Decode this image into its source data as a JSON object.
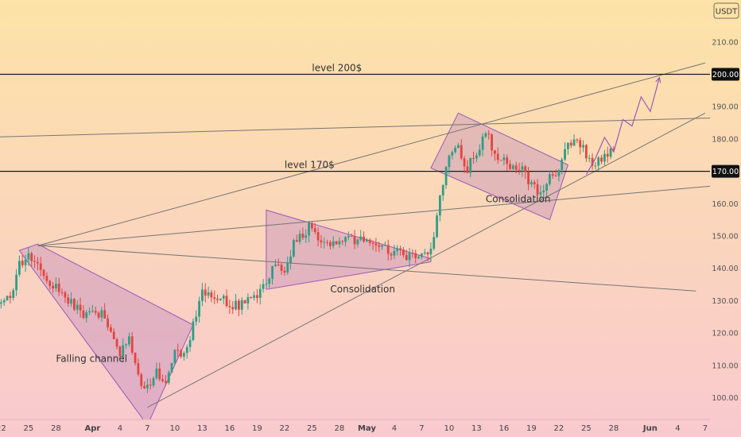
{
  "chart_data": {
    "type": "candlestick",
    "currency_label": "USDT",
    "y_axis": {
      "ylim": [
        90,
        218
      ],
      "ticks": [
        100,
        110,
        120,
        130,
        140,
        150,
        160,
        170,
        180,
        190,
        200,
        210
      ],
      "tick_labels": [
        "100.00",
        "110.00",
        "120.00",
        "130.00",
        "140.00",
        "150.00",
        "160.00",
        "170.00",
        "180.00",
        "190.00",
        "200.00",
        "210.00"
      ],
      "highlighted": [
        {
          "value": 200,
          "label": "200.00"
        },
        {
          "value": 170,
          "label": "170.00"
        }
      ]
    },
    "x_axis": {
      "start_date": "2024-03-21",
      "end_date": "2024-06-08",
      "tick_labels": [
        {
          "date": "2024-03-22",
          "label": "22",
          "bold": false
        },
        {
          "date": "2024-03-25",
          "label": "25",
          "bold": false
        },
        {
          "date": "2024-03-28",
          "label": "28",
          "bold": false
        },
        {
          "date": "2024-04-01",
          "label": "Apr",
          "bold": true
        },
        {
          "date": "2024-04-04",
          "label": "4",
          "bold": false
        },
        {
          "date": "2024-04-07",
          "label": "7",
          "bold": false
        },
        {
          "date": "2024-04-10",
          "label": "10",
          "bold": false
        },
        {
          "date": "2024-04-13",
          "label": "13",
          "bold": false
        },
        {
          "date": "2024-04-16",
          "label": "16",
          "bold": false
        },
        {
          "date": "2024-04-19",
          "label": "19",
          "bold": false
        },
        {
          "date": "2024-04-22",
          "label": "22",
          "bold": false
        },
        {
          "date": "2024-04-25",
          "label": "25",
          "bold": false
        },
        {
          "date": "2024-04-28",
          "label": "28",
          "bold": false
        },
        {
          "date": "2024-05-01",
          "label": "May",
          "bold": true
        },
        {
          "date": "2024-05-04",
          "label": "4",
          "bold": false
        },
        {
          "date": "2024-05-07",
          "label": "7",
          "bold": false
        },
        {
          "date": "2024-05-10",
          "label": "10",
          "bold": false
        },
        {
          "date": "2024-05-13",
          "label": "13",
          "bold": false
        },
        {
          "date": "2024-05-16",
          "label": "16",
          "bold": false
        },
        {
          "date": "2024-05-19",
          "label": "19",
          "bold": false
        },
        {
          "date": "2024-05-22",
          "label": "22",
          "bold": false
        },
        {
          "date": "2024-05-25",
          "label": "25",
          "bold": false
        },
        {
          "date": "2024-05-28",
          "label": "28",
          "bold": false
        },
        {
          "date": "2024-06-01",
          "label": "Jun",
          "bold": true
        },
        {
          "date": "2024-06-04",
          "label": "4",
          "bold": false
        },
        {
          "date": "2024-06-07",
          "label": "7",
          "bold": false
        }
      ]
    },
    "colors": {
      "bg_top": "#fde3a7",
      "bg_bottom": "#f9c9cf",
      "up": "#2e9e85",
      "down": "#e2453f",
      "pattern_stroke": "#9b59b6",
      "pattern_fill": "rgba(170,110,190,0.30)",
      "trend_line": "#757575",
      "level_line": "#1c1c1c"
    },
    "price_path": [
      [
        "2024-03-21",
        128.5
      ],
      [
        "2024-03-23",
        131
      ],
      [
        "2024-03-24",
        141
      ],
      [
        "2024-03-25",
        144
      ],
      [
        "2024-03-26",
        141
      ],
      [
        "2024-03-27",
        137
      ],
      [
        "2024-03-29",
        131
      ],
      [
        "2024-03-31",
        126
      ],
      [
        "2024-04-02",
        126
      ],
      [
        "2024-04-03",
        119
      ],
      [
        "2024-04-04",
        113
      ],
      [
        "2024-04-05",
        119
      ],
      [
        "2024-04-06",
        106
      ],
      [
        "2024-04-07",
        103
      ],
      [
        "2024-04-08",
        109
      ],
      [
        "2024-04-09",
        103
      ],
      [
        "2024-04-10",
        116
      ],
      [
        "2024-04-11",
        113
      ],
      [
        "2024-04-12",
        122
      ],
      [
        "2024-04-13",
        133
      ],
      [
        "2024-04-15",
        131
      ],
      [
        "2024-04-17",
        128
      ],
      [
        "2024-04-19",
        131
      ],
      [
        "2024-04-20",
        135
      ],
      [
        "2024-04-21",
        141
      ],
      [
        "2024-04-22",
        139
      ],
      [
        "2024-04-23",
        148
      ],
      [
        "2024-04-24",
        151
      ],
      [
        "2024-04-25",
        153
      ],
      [
        "2024-04-26",
        149
      ],
      [
        "2024-04-28",
        148
      ],
      [
        "2024-04-30",
        149
      ],
      [
        "2024-05-02",
        148
      ],
      [
        "2024-05-04",
        145
      ],
      [
        "2024-05-06",
        143
      ],
      [
        "2024-05-07",
        144
      ],
      [
        "2024-05-08",
        146
      ],
      [
        "2024-05-09",
        162
      ],
      [
        "2024-05-10",
        175
      ],
      [
        "2024-05-11",
        177
      ],
      [
        "2024-05-12",
        171
      ],
      [
        "2024-05-13",
        176
      ],
      [
        "2024-05-14",
        182
      ],
      [
        "2024-05-15",
        176
      ],
      [
        "2024-05-16",
        173
      ],
      [
        "2024-05-18",
        170
      ],
      [
        "2024-05-20",
        163
      ],
      [
        "2024-05-21",
        168
      ],
      [
        "2024-05-22",
        170
      ],
      [
        "2024-05-23",
        178
      ],
      [
        "2024-05-24",
        181
      ],
      [
        "2024-05-25",
        175
      ],
      [
        "2024-05-26",
        172
      ],
      [
        "2024-05-27",
        174
      ],
      [
        "2024-05-28",
        177
      ]
    ],
    "levels": [
      {
        "name": "level-200",
        "price": 200,
        "label": "level 200$",
        "label_date": "2024-04-25"
      },
      {
        "name": "level-170",
        "price": 170,
        "label": "level 170$",
        "label_date": "2024-04-22"
      }
    ],
    "trend_lines": [
      {
        "from": [
          "2024-03-20",
          180.5
        ],
        "to": [
          "2024-06-08",
          186.5
        ]
      },
      {
        "from": [
          "2024-03-26",
          147
        ],
        "to": [
          "2024-06-07",
          203.5
        ]
      },
      {
        "from": [
          "2024-03-26",
          147
        ],
        "to": [
          "2024-06-06",
          133
        ]
      },
      {
        "from": [
          "2024-03-26",
          147
        ],
        "to": [
          "2024-06-08",
          165.5
        ]
      },
      {
        "from": [
          "2024-04-07",
          97
        ],
        "to": [
          "2024-06-07",
          188
        ]
      }
    ],
    "patterns": [
      {
        "name": "falling-channel-pattern",
        "points": [
          [
            "2024-03-26",
            147.5
          ],
          [
            "2024-04-12",
            122.5
          ],
          [
            "2024-04-07",
            91.5
          ],
          [
            "2024-03-24",
            145.5
          ]
        ]
      },
      {
        "name": "consolidation-1-pattern",
        "points": [
          [
            "2024-04-20",
            158
          ],
          [
            "2024-05-08",
            143
          ],
          [
            "2024-05-08",
            142
          ],
          [
            "2024-04-20",
            133.5
          ]
        ]
      },
      {
        "name": "consolidation-2-pattern",
        "points": [
          [
            "2024-05-11",
            188
          ],
          [
            "2024-05-23",
            172
          ],
          [
            "2024-05-21",
            155
          ],
          [
            "2024-05-08",
            171
          ]
        ]
      }
    ],
    "projection": [
      [
        "2024-05-25",
        169
      ],
      [
        "2024-05-26",
        174
      ],
      [
        "2024-05-27",
        180.5
      ],
      [
        "2024-05-28",
        176
      ],
      [
        "2024-05-29",
        186
      ],
      [
        "2024-05-30",
        184
      ],
      [
        "2024-05-31",
        193
      ],
      [
        "2024-06-01",
        188.5
      ],
      [
        "2024-06-02",
        199
      ]
    ],
    "annotations": [
      {
        "name": "falling-channel-label",
        "text": "Falling channel",
        "date": "2024-03-28",
        "price": 111
      },
      {
        "name": "consolidation-label-1",
        "text": "Consolidation",
        "date": "2024-04-27",
        "price": 132.5
      },
      {
        "name": "consolidation-label-2",
        "text": "Consolidation",
        "date": "2024-05-14",
        "price": 160.5
      }
    ]
  }
}
